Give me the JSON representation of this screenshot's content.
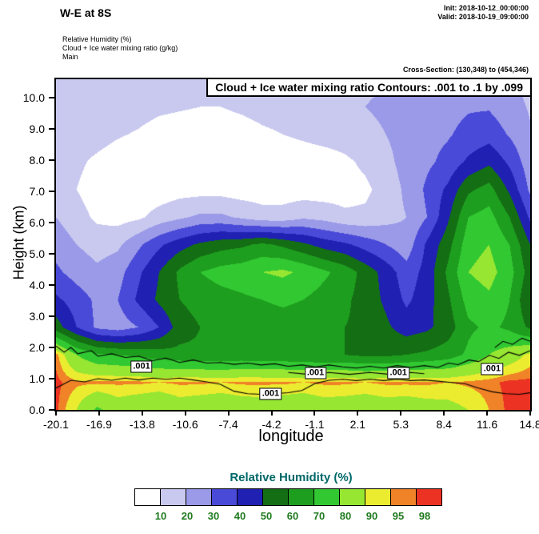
{
  "header": {
    "title": "W-E at 8S",
    "init_line": "Init: 2018-10-12_00:00:00",
    "valid_line": "Valid: 2018-10-19_09:00:00",
    "subtitle_lines": [
      "Relative Humidity  (%)",
      "Cloud + Ice water mixing ratio  (g/kg)",
      "Main"
    ],
    "cross_section": "Cross-Section: (130,348) to (454,346)"
  },
  "plot": {
    "banner": "Cloud + Ice water mixing ratio Contours: .001 to .1 by .099",
    "xlabel": "longitude",
    "ylabel": "Height (km)"
  },
  "colorbar": {
    "title": "Relative Humidity  (%)",
    "title_color": "#006868",
    "label_color": "#1f7a1f",
    "levels": [
      10,
      20,
      30,
      40,
      50,
      60,
      70,
      80,
      90,
      95,
      98
    ],
    "colors": [
      "#FFFFFF",
      "#C9C9F0",
      "#9A9AE8",
      "#4A4AD9",
      "#2020B2",
      "#146E14",
      "#1E9E1E",
      "#32C832",
      "#96E632",
      "#EBEB30",
      "#F08228",
      "#EB3223"
    ]
  },
  "chart_data": {
    "type": "heatmap",
    "title": "W-E at 8S",
    "xlabel": "longitude",
    "ylabel": "Height (km)",
    "x_range": [
      -20.1,
      14.8
    ],
    "y_range": [
      0,
      10.6
    ],
    "x_ticks": [
      "-20.1",
      "-16.9",
      "-13.8",
      "-10.6",
      "-7.4",
      "-4.2",
      "-1.1",
      "2.1",
      "5.3",
      "8.4",
      "11.6",
      "14.8"
    ],
    "y_ticks": [
      "0.0",
      "1.0",
      "2.0",
      "3.0",
      "4.0",
      "5.0",
      "6.0",
      "7.0",
      "8.0",
      "9.0",
      "10.0"
    ],
    "field_name": "Relative Humidity (%)",
    "grid": {
      "note": "relative humidity (%) on uniform grid, rows bottom(0km) to top(10.6km), cols -20.1 to 14.8 lon",
      "rh": [
        [
          99,
          90,
          78,
          85,
          82,
          80,
          85,
          83,
          82,
          84,
          85,
          83,
          82,
          85,
          84,
          83,
          85,
          84,
          86,
          87,
          90,
          95,
          99,
          99
        ],
        [
          99,
          96,
          96,
          96,
          96,
          95,
          96,
          96,
          95,
          96,
          96,
          96,
          95,
          96,
          96,
          95,
          96,
          96,
          96,
          95,
          96,
          97,
          99,
          99
        ],
        [
          97,
          80,
          72,
          70,
          68,
          65,
          63,
          62,
          62,
          63,
          62,
          62,
          61,
          60,
          60,
          58,
          58,
          60,
          62,
          65,
          72,
          80,
          85,
          92
        ],
        [
          55,
          40,
          28,
          25,
          30,
          40,
          55,
          60,
          62,
          63,
          64,
          65,
          64,
          63,
          60,
          58,
          52,
          45,
          48,
          55,
          68,
          72,
          68,
          58
        ],
        [
          42,
          35,
          28,
          30,
          42,
          52,
          60,
          64,
          66,
          68,
          70,
          72,
          70,
          66,
          62,
          56,
          48,
          38,
          46,
          58,
          74,
          78,
          70,
          50
        ],
        [
          32,
          26,
          22,
          26,
          38,
          50,
          62,
          70,
          74,
          76,
          80,
          82,
          78,
          72,
          66,
          56,
          46,
          34,
          44,
          62,
          80,
          84,
          74,
          55
        ],
        [
          26,
          20,
          16,
          18,
          28,
          38,
          46,
          52,
          56,
          58,
          62,
          58,
          52,
          46,
          42,
          36,
          30,
          24,
          42,
          56,
          76,
          80,
          70,
          50
        ],
        [
          20,
          14,
          8,
          6,
          8,
          14,
          18,
          22,
          22,
          18,
          14,
          14,
          18,
          16,
          12,
          12,
          16,
          20,
          30,
          48,
          70,
          74,
          60,
          38
        ],
        [
          16,
          10,
          5,
          3,
          3,
          4,
          6,
          6,
          6,
          5,
          5,
          5,
          5,
          5,
          6,
          8,
          14,
          22,
          32,
          42,
          58,
          64,
          48,
          28
        ],
        [
          15,
          12,
          8,
          5,
          3,
          3,
          3,
          3,
          3,
          3,
          3,
          3,
          4,
          5,
          8,
          12,
          17,
          24,
          28,
          33,
          42,
          48,
          38,
          24
        ],
        [
          18,
          15,
          14,
          11,
          9,
          6,
          5,
          4,
          4,
          5,
          8,
          10,
          12,
          14,
          15,
          17,
          20,
          24,
          27,
          29,
          33,
          36,
          29,
          21
        ],
        [
          20,
          18,
          17,
          15,
          14,
          12,
          11,
          10,
          10,
          12,
          14,
          15,
          17,
          18,
          19,
          20,
          22,
          24,
          25,
          27,
          29,
          29,
          24,
          19
        ],
        [
          18,
          16,
          15,
          14,
          12,
          12,
          11,
          11,
          11,
          12,
          14,
          14,
          15,
          17,
          17,
          18,
          19,
          20,
          21,
          22,
          24,
          24,
          21,
          17
        ]
      ]
    },
    "cloud_contours": {
      "contour_spec": ".001 to .1 by .099",
      "labels": [
        {
          "x": -13.8,
          "y": 1.38,
          "text": ".001"
        },
        {
          "x": -4.3,
          "y": 0.52,
          "text": ".001"
        },
        {
          "x": -1.0,
          "y": 1.18,
          "text": ".001"
        },
        {
          "x": 5.1,
          "y": 1.18,
          "text": ".001"
        },
        {
          "x": 12.0,
          "y": 1.32,
          "text": ".001"
        }
      ],
      "paths": [
        [
          [
            -20.1,
            2.05
          ],
          [
            -19.5,
            1.85
          ],
          [
            -19.0,
            2.0
          ],
          [
            -18.5,
            1.8
          ],
          [
            -17.5,
            1.9
          ],
          [
            -17.0,
            1.72
          ],
          [
            -16.0,
            1.8
          ],
          [
            -15.0,
            1.68
          ],
          [
            -14.0,
            1.72
          ],
          [
            -13.0,
            1.58
          ],
          [
            -12.0,
            1.66
          ],
          [
            -11.0,
            1.52
          ],
          [
            -10.0,
            1.6
          ],
          [
            -9.0,
            1.5
          ],
          [
            -8.0,
            1.52
          ],
          [
            -7.0,
            1.46
          ],
          [
            -6.0,
            1.5
          ],
          [
            -5.0,
            1.44
          ],
          [
            -4.0,
            1.48
          ],
          [
            -3.0,
            1.4
          ],
          [
            -2.0,
            1.44
          ],
          [
            -1.0,
            1.38
          ],
          [
            0.0,
            1.44
          ],
          [
            1.0,
            1.38
          ],
          [
            2.0,
            1.34
          ],
          [
            3.0,
            1.4
          ],
          [
            4.0,
            1.34
          ],
          [
            5.0,
            1.42
          ],
          [
            6.0,
            1.36
          ],
          [
            7.0,
            1.42
          ],
          [
            8.0,
            1.36
          ],
          [
            8.8,
            1.5
          ],
          [
            9.5,
            1.45
          ],
          [
            10.3,
            1.6
          ],
          [
            11.0,
            1.55
          ],
          [
            11.8,
            1.75
          ],
          [
            12.5,
            1.65
          ],
          [
            13.2,
            1.85
          ],
          [
            14.0,
            1.75
          ],
          [
            14.8,
            1.9
          ]
        ],
        [
          [
            -20.1,
            0.7
          ],
          [
            -19.0,
            0.95
          ],
          [
            -18.0,
            0.9
          ],
          [
            -17.0,
            1.0
          ],
          [
            -16.0,
            0.95
          ],
          [
            -15.0,
            1.02
          ],
          [
            -14.0,
            0.96
          ],
          [
            -13.0,
            1.02
          ],
          [
            -12.0,
            0.98
          ],
          [
            -11.0,
            1.02
          ],
          [
            -10.0,
            0.96
          ],
          [
            -9.0,
            0.9
          ],
          [
            -8.0,
            0.82
          ],
          [
            -7.0,
            0.6
          ],
          [
            -6.0,
            0.52
          ],
          [
            -5.0,
            0.5
          ],
          [
            -4.0,
            0.52
          ],
          [
            -3.0,
            0.55
          ],
          [
            -2.0,
            0.62
          ],
          [
            -1.0,
            0.85
          ],
          [
            0.0,
            0.95
          ],
          [
            1.0,
            0.98
          ],
          [
            2.0,
            0.94
          ],
          [
            3.0,
            0.98
          ],
          [
            4.0,
            0.94
          ],
          [
            5.0,
            0.98
          ],
          [
            6.0,
            0.94
          ],
          [
            7.0,
            0.96
          ],
          [
            8.0,
            0.92
          ],
          [
            9.0,
            0.88
          ],
          [
            10.0,
            0.84
          ],
          [
            11.0,
            0.7
          ],
          [
            12.0,
            0.58
          ],
          [
            13.0,
            0.52
          ],
          [
            14.0,
            0.5
          ],
          [
            14.8,
            0.55
          ]
        ],
        [
          [
            -3.0,
            1.2
          ],
          [
            -1.5,
            1.14
          ],
          [
            0.0,
            1.2
          ],
          [
            1.5,
            1.14
          ],
          [
            3.0,
            1.2
          ],
          [
            4.5,
            1.14
          ],
          [
            6.0,
            1.2
          ],
          [
            7.0,
            1.16
          ]
        ],
        [
          [
            12.2,
            2.0
          ],
          [
            12.8,
            2.2
          ],
          [
            13.5,
            2.1
          ],
          [
            14.2,
            2.3
          ],
          [
            14.8,
            2.2
          ]
        ]
      ]
    }
  }
}
